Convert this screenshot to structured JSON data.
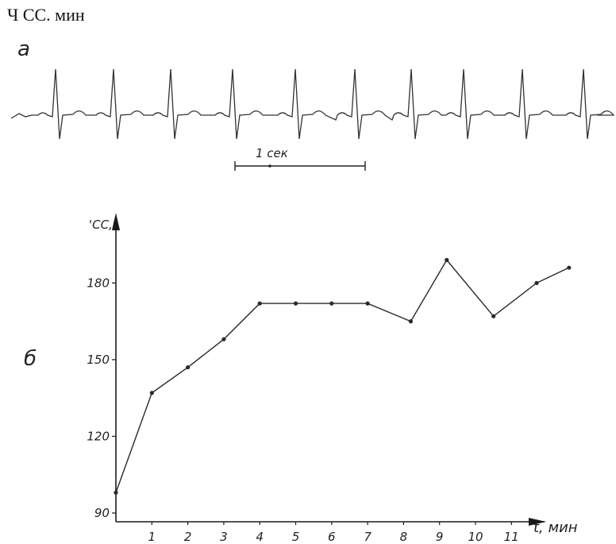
{
  "caption": "Ч СС. мин",
  "ecg": {
    "panel_label": "а",
    "scale_label": "1 сек",
    "beats": 10
  },
  "chart_data": {
    "type": "line",
    "panel_label": "б",
    "ylabel": "'CC,t.",
    "xlabel": "t, мин",
    "x_ticks": [
      "1",
      "2",
      "3",
      "4",
      "5",
      "6",
      "7",
      "8",
      "9",
      "10",
      "11"
    ],
    "y_ticks": [
      90,
      120,
      150,
      180
    ],
    "ylim": [
      90,
      200
    ],
    "xlim": [
      0,
      12.6
    ],
    "grid": false,
    "series": [
      {
        "x": [
          0,
          1,
          2,
          3,
          4,
          5,
          6,
          7,
          8.2,
          9.2,
          10.5,
          11.7,
          12.6
        ],
        "y": [
          98,
          137,
          147,
          158,
          172,
          172,
          172,
          172,
          165,
          189,
          167,
          180,
          186
        ]
      }
    ],
    "colors": {
      "line": "#2a2a2a",
      "axis": "#1a1a1a"
    }
  }
}
